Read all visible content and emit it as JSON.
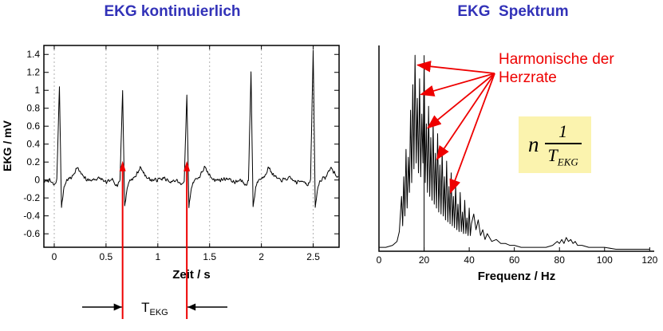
{
  "titles": {
    "left": "EKG kontinuierlich",
    "right": "EKG  Spektrum"
  },
  "colors": {
    "title_blue": "#3232b8",
    "red": "#ee0000",
    "trace_black": "#000000",
    "formula_bg": "#fbf3ae",
    "grid_gray": "#b0b0b0"
  },
  "annotations": {
    "harmonics": {
      "line1": "Harmonische der",
      "line2": "Herzrate"
    },
    "formula": {
      "factor": "n",
      "numerator": "1",
      "denominator_base": "T",
      "denominator_sub": "EKG"
    },
    "period": {
      "base": "T",
      "sub": "EKG"
    }
  },
  "chart_data": [
    {
      "type": "line",
      "title": "EKG kontinuierlich",
      "xlabel": "Zeit / s",
      "ylabel": "EKG / mV",
      "xlim": [
        -0.1,
        2.75
      ],
      "ylim": [
        -0.75,
        1.5
      ],
      "xticks": [
        0,
        0.5,
        1,
        1.5,
        2,
        2.5
      ],
      "xtick_labels": [
        "0",
        "0.5",
        "1",
        "1.5",
        "2",
        "2.5"
      ],
      "yticks": [
        1.4,
        1.2,
        1.0,
        0.8,
        0.6,
        0.4,
        0.2,
        0,
        -0.2,
        -0.4,
        -0.6
      ],
      "ytick_labels": [
        "1.4",
        "1.2",
        "1",
        "0.8",
        "0.6",
        "0.4",
        "0.2",
        "0",
        "-0.2",
        "-0.4",
        "-0.6"
      ],
      "grid": "dashed-vertical",
      "beats": {
        "times": [
          0.05,
          0.66,
          1.28,
          1.9,
          2.5
        ],
        "r_amplitudes": [
          1.05,
          1.0,
          0.95,
          1.2,
          1.45
        ]
      },
      "beat_template": [
        [
          -0.3,
          0,
          0
        ],
        [
          -0.22,
          0.02,
          0
        ],
        [
          -0.16,
          -0.03,
          0
        ],
        [
          -0.1,
          0,
          0
        ],
        [
          -0.05,
          -0.06,
          0
        ],
        [
          -0.025,
          0,
          0
        ],
        [
          0,
          0,
          1
        ],
        [
          0.02,
          -0.3,
          0
        ],
        [
          0.045,
          -0.08,
          0
        ],
        [
          0.07,
          0,
          0
        ],
        [
          0.12,
          0.03,
          0
        ],
        [
          0.17,
          0.14,
          0
        ],
        [
          0.22,
          0.05,
          0
        ],
        [
          0.27,
          0,
          0
        ]
      ],
      "noise_amplitude": 0.025,
      "noise_seed": 7,
      "sample_step": 0.005,
      "period_marker": {
        "t1": 0.66,
        "t2": 1.28
      }
    },
    {
      "type": "line",
      "title": "EKG Spektrum",
      "xlabel": "Frequenz / Hz",
      "ylabel": "",
      "xlim": [
        0,
        122
      ],
      "ylim": [
        0,
        1.05
      ],
      "xticks": [
        0,
        20,
        40,
        60,
        80,
        100,
        120
      ],
      "xtick_labels": [
        "0",
        "20",
        "40",
        "60",
        "80",
        "100",
        "120"
      ],
      "fundamental_marker_freq": 20,
      "harmonic_arrow_targets": [
        [
          16.5,
          0.95
        ],
        [
          18,
          0.8
        ],
        [
          21,
          0.63
        ],
        [
          25,
          0.47
        ],
        [
          31,
          0.3
        ]
      ],
      "points": [
        [
          0,
          0.02
        ],
        [
          3,
          0.02
        ],
        [
          6,
          0.03
        ],
        [
          8,
          0.05
        ],
        [
          9,
          0.1
        ],
        [
          10,
          0.28
        ],
        [
          10.5,
          0.13
        ],
        [
          11,
          0.38
        ],
        [
          11.5,
          0.18
        ],
        [
          12,
          0.52
        ],
        [
          12.5,
          0.22
        ],
        [
          13,
          0.48
        ],
        [
          13.5,
          0.3
        ],
        [
          14,
          0.72
        ],
        [
          14.5,
          0.35
        ],
        [
          15,
          0.85
        ],
        [
          15.5,
          0.42
        ],
        [
          16,
          1.0
        ],
        [
          16.5,
          0.45
        ],
        [
          17,
          0.78
        ],
        [
          17.5,
          0.4
        ],
        [
          18,
          0.88
        ],
        [
          18.5,
          0.38
        ],
        [
          19,
          0.7
        ],
        [
          19.5,
          0.45
        ],
        [
          20,
          0.97
        ],
        [
          20.5,
          0.35
        ],
        [
          21,
          0.65
        ],
        [
          21.5,
          0.3
        ],
        [
          22,
          0.74
        ],
        [
          22.5,
          0.28
        ],
        [
          23,
          0.58
        ],
        [
          23.5,
          0.26
        ],
        [
          24,
          0.66
        ],
        [
          24.5,
          0.24
        ],
        [
          25,
          0.5
        ],
        [
          25.5,
          0.22
        ],
        [
          26,
          0.6
        ],
        [
          26.5,
          0.2
        ],
        [
          27,
          0.44
        ],
        [
          27.5,
          0.19
        ],
        [
          28,
          0.52
        ],
        [
          28.5,
          0.18
        ],
        [
          29,
          0.38
        ],
        [
          29.5,
          0.16
        ],
        [
          30,
          0.46
        ],
        [
          30.5,
          0.15
        ],
        [
          31,
          0.33
        ],
        [
          31.5,
          0.14
        ],
        [
          32,
          0.4
        ],
        [
          32.5,
          0.13
        ],
        [
          33,
          0.28
        ],
        [
          33.5,
          0.12
        ],
        [
          34,
          0.34
        ],
        [
          34.5,
          0.11
        ],
        [
          35,
          0.24
        ],
        [
          35.5,
          0.1
        ],
        [
          36,
          0.3
        ],
        [
          36.5,
          0.1
        ],
        [
          37,
          0.2
        ],
        [
          37.5,
          0.09
        ],
        [
          38,
          0.26
        ],
        [
          38.5,
          0.09
        ],
        [
          39,
          0.17
        ],
        [
          39.5,
          0.08
        ],
        [
          40,
          0.22
        ],
        [
          40.5,
          0.08
        ],
        [
          41,
          0.14
        ],
        [
          42,
          0.19
        ],
        [
          43,
          0.11
        ],
        [
          44,
          0.16
        ],
        [
          45,
          0.08
        ],
        [
          46,
          0.11
        ],
        [
          47,
          0.06
        ],
        [
          48,
          0.09
        ],
        [
          50,
          0.05
        ],
        [
          52,
          0.06
        ],
        [
          54,
          0.04
        ],
        [
          56,
          0.04
        ],
        [
          58,
          0.03
        ],
        [
          60,
          0.03
        ],
        [
          63,
          0.02
        ],
        [
          66,
          0.02
        ],
        [
          70,
          0.02
        ],
        [
          74,
          0.02
        ],
        [
          77,
          0.03
        ],
        [
          79,
          0.05
        ],
        [
          80,
          0.04
        ],
        [
          81,
          0.06
        ],
        [
          82,
          0.04
        ],
        [
          83,
          0.07
        ],
        [
          84,
          0.05
        ],
        [
          85,
          0.06
        ],
        [
          86,
          0.04
        ],
        [
          87,
          0.05
        ],
        [
          88,
          0.03
        ],
        [
          90,
          0.03
        ],
        [
          93,
          0.02
        ],
        [
          96,
          0.02
        ],
        [
          100,
          0.02
        ],
        [
          105,
          0.01
        ],
        [
          110,
          0.01
        ],
        [
          115,
          0.01
        ],
        [
          120,
          0.01
        ]
      ]
    }
  ]
}
